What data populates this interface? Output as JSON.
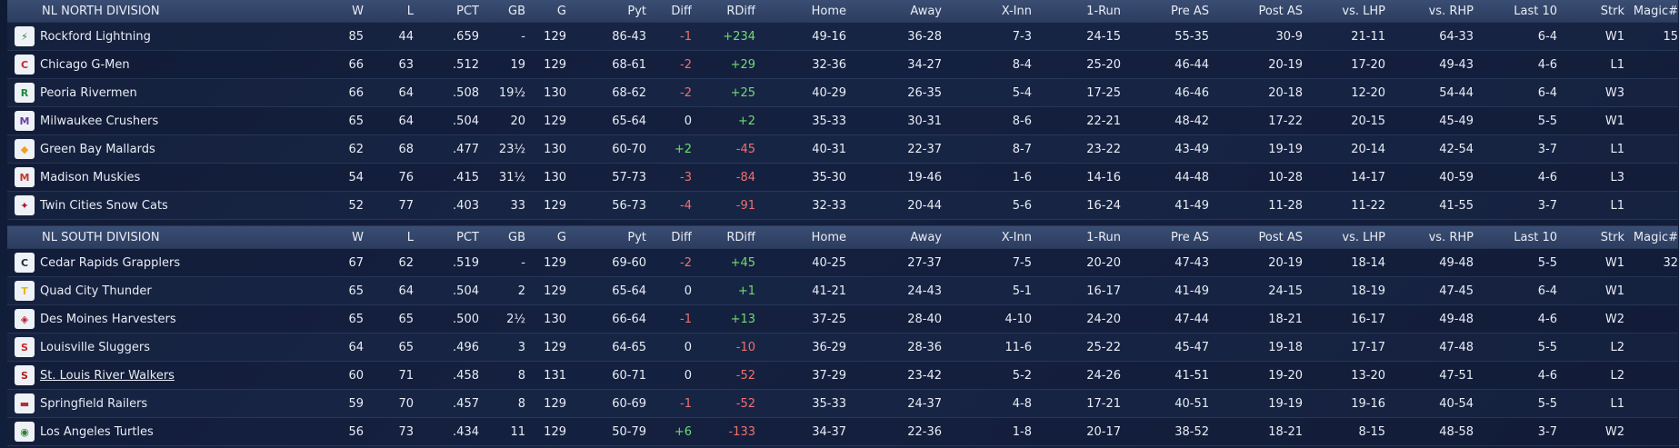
{
  "columns": [
    "W",
    "L",
    "PCT",
    "GB",
    "G",
    "Pyt",
    "Diff",
    "RDiff",
    "Home",
    "Away",
    "X-Inn",
    "1-Run",
    "Pre AS",
    "Post AS",
    "vs. LHP",
    "vs. RHP",
    "Last 10",
    "Strk",
    "Magic#"
  ],
  "divisions": [
    {
      "title": "NL NORTH DIVISION",
      "teams": [
        {
          "name": "Rockford Lightning",
          "logo_icon": "lightning-logo-icon",
          "logo_color": "#2e7d32",
          "w": "85",
          "l": "44",
          "pct": ".659",
          "gb": "-",
          "g": "129",
          "pyt": "86-43",
          "diff": "-1",
          "diff_sign": "neg",
          "rdiff": "+234",
          "rdiff_sign": "pos",
          "home": "49-16",
          "away": "36-28",
          "xinn": "7-3",
          "onerun": "24-15",
          "preas": "55-35",
          "postas": "30-9",
          "lhp": "21-11",
          "rhp": "64-33",
          "last10": "6-4",
          "strk": "W1",
          "magic": "15"
        },
        {
          "name": "Chicago G-Men",
          "logo_icon": "gmen-logo-icon",
          "logo_color": "#c62828",
          "w": "66",
          "l": "63",
          "pct": ".512",
          "gb": "19",
          "g": "129",
          "pyt": "68-61",
          "diff": "-2",
          "diff_sign": "neg",
          "rdiff": "+29",
          "rdiff_sign": "pos",
          "home": "32-36",
          "away": "34-27",
          "xinn": "8-4",
          "onerun": "25-20",
          "preas": "46-44",
          "postas": "20-19",
          "lhp": "17-20",
          "rhp": "49-43",
          "last10": "4-6",
          "strk": "L1",
          "magic": ""
        },
        {
          "name": "Peoria Rivermen",
          "logo_icon": "rivermen-logo-icon",
          "logo_color": "#1b8a3c",
          "w": "66",
          "l": "64",
          "pct": ".508",
          "gb": "19½",
          "g": "130",
          "pyt": "68-62",
          "diff": "-2",
          "diff_sign": "neg",
          "rdiff": "+25",
          "rdiff_sign": "pos",
          "home": "40-29",
          "away": "26-35",
          "xinn": "5-4",
          "onerun": "17-25",
          "preas": "46-46",
          "postas": "20-18",
          "lhp": "12-20",
          "rhp": "54-44",
          "last10": "6-4",
          "strk": "W3",
          "magic": ""
        },
        {
          "name": "Milwaukee Crushers",
          "logo_icon": "crushers-logo-icon",
          "logo_color": "#6a3fa0",
          "w": "65",
          "l": "64",
          "pct": ".504",
          "gb": "20",
          "g": "129",
          "pyt": "65-64",
          "diff": "0",
          "diff_sign": "zero",
          "rdiff": "+2",
          "rdiff_sign": "pos",
          "home": "35-33",
          "away": "30-31",
          "xinn": "8-6",
          "onerun": "22-21",
          "preas": "48-42",
          "postas": "17-22",
          "lhp": "20-15",
          "rhp": "45-49",
          "last10": "5-5",
          "strk": "W1",
          "magic": ""
        },
        {
          "name": "Green Bay  Mallards",
          "logo_icon": "mallards-logo-icon",
          "logo_color": "#f0a020",
          "w": "62",
          "l": "68",
          "pct": ".477",
          "gb": "23½",
          "g": "130",
          "pyt": "60-70",
          "diff": "+2",
          "diff_sign": "pos",
          "rdiff": "-45",
          "rdiff_sign": "neg",
          "home": "40-31",
          "away": "22-37",
          "xinn": "8-7",
          "onerun": "23-22",
          "preas": "43-49",
          "postas": "19-19",
          "lhp": "20-14",
          "rhp": "42-54",
          "last10": "3-7",
          "strk": "L1",
          "magic": ""
        },
        {
          "name": "Madison Muskies",
          "logo_icon": "muskies-logo-icon",
          "logo_color": "#c0392b",
          "w": "54",
          "l": "76",
          "pct": ".415",
          "gb": "31½",
          "g": "130",
          "pyt": "57-73",
          "diff": "-3",
          "diff_sign": "neg",
          "rdiff": "-84",
          "rdiff_sign": "neg",
          "home": "35-30",
          "away": "19-46",
          "xinn": "1-6",
          "onerun": "14-16",
          "preas": "44-48",
          "postas": "10-28",
          "lhp": "14-17",
          "rhp": "40-59",
          "last10": "4-6",
          "strk": "L3",
          "magic": ""
        },
        {
          "name": "Twin Cities Snow Cats",
          "logo_icon": "snowcats-logo-icon",
          "logo_color": "#b0122a",
          "w": "52",
          "l": "77",
          "pct": ".403",
          "gb": "33",
          "g": "129",
          "pyt": "56-73",
          "diff": "-4",
          "diff_sign": "neg",
          "rdiff": "-91",
          "rdiff_sign": "neg",
          "home": "32-33",
          "away": "20-44",
          "xinn": "5-6",
          "onerun": "16-24",
          "preas": "41-49",
          "postas": "11-28",
          "lhp": "11-22",
          "rhp": "41-55",
          "last10": "3-7",
          "strk": "L1",
          "magic": ""
        }
      ]
    },
    {
      "title": "NL SOUTH DIVISION",
      "teams": [
        {
          "name": "Cedar Rapids Grapplers",
          "logo_icon": "grapplers-logo-icon",
          "logo_color": "#222a3a",
          "w": "67",
          "l": "62",
          "pct": ".519",
          "gb": "-",
          "g": "129",
          "pyt": "69-60",
          "diff": "-2",
          "diff_sign": "neg",
          "rdiff": "+45",
          "rdiff_sign": "pos",
          "home": "40-25",
          "away": "27-37",
          "xinn": "7-5",
          "onerun": "20-20",
          "preas": "47-43",
          "postas": "20-19",
          "lhp": "18-14",
          "rhp": "49-48",
          "last10": "5-5",
          "strk": "W1",
          "magic": "32"
        },
        {
          "name": "Quad City Thunder",
          "logo_icon": "thunder-logo-icon",
          "logo_color": "#e6b800",
          "w": "65",
          "l": "64",
          "pct": ".504",
          "gb": "2",
          "g": "129",
          "pyt": "65-64",
          "diff": "0",
          "diff_sign": "zero",
          "rdiff": "+1",
          "rdiff_sign": "pos",
          "home": "41-21",
          "away": "24-43",
          "xinn": "5-1",
          "onerun": "16-17",
          "preas": "41-49",
          "postas": "24-15",
          "lhp": "18-19",
          "rhp": "47-45",
          "last10": "6-4",
          "strk": "W1",
          "magic": ""
        },
        {
          "name": "Des Moines Harvesters",
          "logo_icon": "harvesters-logo-icon",
          "logo_color": "#b71c1c",
          "w": "65",
          "l": "65",
          "pct": ".500",
          "gb": "2½",
          "g": "130",
          "pyt": "66-64",
          "diff": "-1",
          "diff_sign": "neg",
          "rdiff": "+13",
          "rdiff_sign": "pos",
          "home": "37-25",
          "away": "28-40",
          "xinn": "4-10",
          "onerun": "24-20",
          "preas": "47-44",
          "postas": "18-21",
          "lhp": "16-17",
          "rhp": "49-48",
          "last10": "4-6",
          "strk": "W2",
          "magic": ""
        },
        {
          "name": "Louisville Sluggers",
          "logo_icon": "sluggers-logo-icon",
          "logo_color": "#c62828",
          "w": "64",
          "l": "65",
          "pct": ".496",
          "gb": "3",
          "g": "129",
          "pyt": "64-65",
          "diff": "0",
          "diff_sign": "zero",
          "rdiff": "-10",
          "rdiff_sign": "neg",
          "home": "36-29",
          "away": "28-36",
          "xinn": "11-6",
          "onerun": "25-22",
          "preas": "45-47",
          "postas": "19-18",
          "lhp": "17-17",
          "rhp": "47-48",
          "last10": "5-5",
          "strk": "L2",
          "magic": ""
        },
        {
          "name": "St. Louis River Walkers",
          "logo_icon": "riverwalkers-logo-icon",
          "logo_color": "#b71c1c",
          "underline": true,
          "w": "60",
          "l": "71",
          "pct": ".458",
          "gb": "8",
          "g": "131",
          "pyt": "60-71",
          "diff": "0",
          "diff_sign": "zero",
          "rdiff": "-52",
          "rdiff_sign": "neg",
          "home": "37-29",
          "away": "23-42",
          "xinn": "5-2",
          "onerun": "24-26",
          "preas": "41-51",
          "postas": "19-20",
          "lhp": "13-20",
          "rhp": "47-51",
          "last10": "4-6",
          "strk": "L2",
          "magic": ""
        },
        {
          "name": "Springfield Railers",
          "logo_icon": "railers-logo-icon",
          "logo_color": "#a33",
          "w": "59",
          "l": "70",
          "pct": ".457",
          "gb": "8",
          "g": "129",
          "pyt": "60-69",
          "diff": "-1",
          "diff_sign": "neg",
          "rdiff": "-52",
          "rdiff_sign": "neg",
          "home": "35-33",
          "away": "24-37",
          "xinn": "4-8",
          "onerun": "17-21",
          "preas": "40-51",
          "postas": "19-19",
          "lhp": "19-16",
          "rhp": "40-54",
          "last10": "5-5",
          "strk": "L1",
          "magic": ""
        },
        {
          "name": "Los Angeles Turtles",
          "logo_icon": "turtles-logo-icon",
          "logo_color": "#2e7d32",
          "w": "56",
          "l": "73",
          "pct": ".434",
          "gb": "11",
          "g": "129",
          "pyt": "50-79",
          "diff": "+6",
          "diff_sign": "pos",
          "rdiff": "-133",
          "rdiff_sign": "neg",
          "home": "34-37",
          "away": "22-36",
          "xinn": "1-8",
          "onerun": "20-17",
          "preas": "38-52",
          "postas": "18-21",
          "lhp": "8-15",
          "rhp": "48-58",
          "last10": "3-7",
          "strk": "W2",
          "magic": ""
        }
      ]
    }
  ]
}
